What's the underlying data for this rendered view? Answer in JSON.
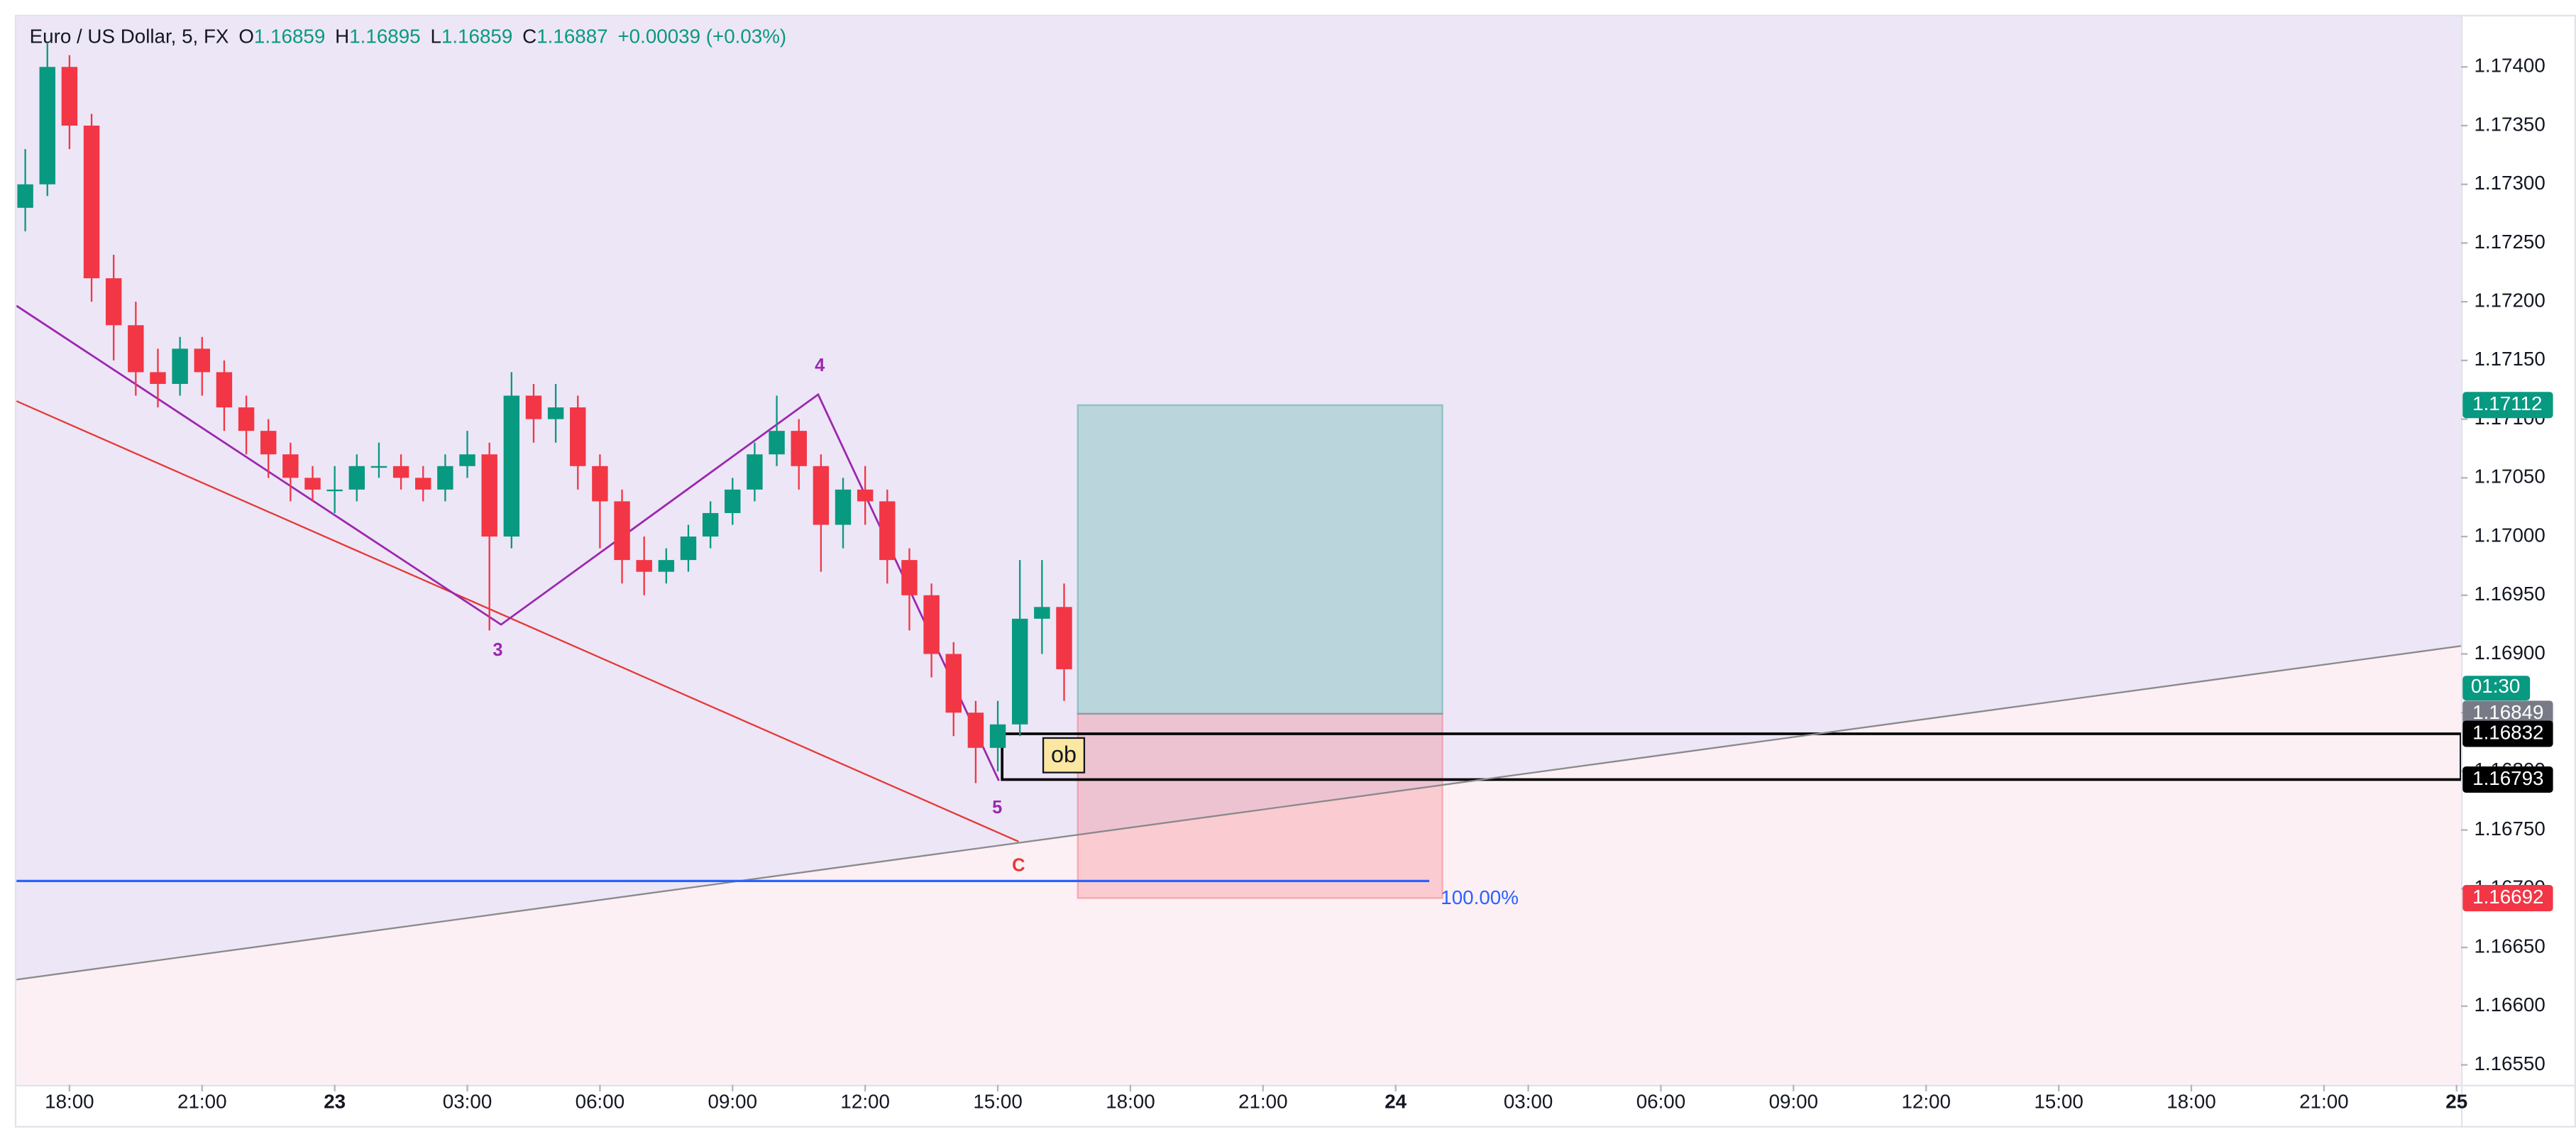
{
  "chart_data": {
    "type": "candlestick",
    "title": "Euro / US Dollar, 5, FX",
    "ohlc_labels": [
      "O",
      "H",
      "L",
      "C"
    ],
    "ohlc_values": [
      1.16859,
      1.16895,
      1.16859,
      1.16887
    ],
    "change": "+0.00039 (+0.03%)",
    "up_color": "#089981",
    "down_color": "#f23645",
    "x": [
      -7,
      -6.5,
      -6,
      -5.5,
      -5,
      -4.5,
      -4,
      -3.5,
      -3,
      -2.5,
      -2,
      -1.5,
      -1,
      -0.5,
      0,
      0.5,
      1,
      1.5,
      2,
      2.5,
      3,
      3.5,
      4,
      4.5,
      5,
      5.5,
      6,
      6.5,
      7,
      7.5,
      8,
      8.5,
      9,
      9.5,
      10,
      10.5,
      11,
      11.5,
      12,
      12.5,
      13,
      13.5,
      14,
      14.5,
      15,
      15.5,
      16,
      16.5
    ],
    "open": [
      1.1728,
      1.173,
      1.174,
      1.1735,
      1.1722,
      1.1718,
      1.1714,
      1.1713,
      1.1716,
      1.1714,
      1.1711,
      1.1709,
      1.1707,
      1.1705,
      1.1704,
      1.1704,
      1.1706,
      1.1706,
      1.1705,
      1.1704,
      1.1706,
      1.1707,
      1.17,
      1.1712,
      1.171,
      1.1711,
      1.1706,
      1.1703,
      1.1698,
      1.1697,
      1.1698,
      1.17,
      1.1702,
      1.1704,
      1.1707,
      1.1709,
      1.1706,
      1.1701,
      1.1704,
      1.1703,
      1.1698,
      1.1695,
      1.169,
      1.1685,
      1.1682,
      1.1684,
      1.1693,
      1.1694
    ],
    "high": [
      1.1733,
      1.1742,
      1.1741,
      1.1736,
      1.1724,
      1.172,
      1.1716,
      1.1717,
      1.1717,
      1.1715,
      1.1712,
      1.171,
      1.1708,
      1.1706,
      1.1706,
      1.1707,
      1.1708,
      1.1707,
      1.1706,
      1.1707,
      1.1709,
      1.1708,
      1.1714,
      1.1713,
      1.1713,
      1.1712,
      1.1707,
      1.1704,
      1.17,
      1.1699,
      1.1701,
      1.1703,
      1.1705,
      1.1708,
      1.1712,
      1.171,
      1.1707,
      1.1705,
      1.1706,
      1.1704,
      1.1699,
      1.1696,
      1.1691,
      1.1686,
      1.1686,
      1.1698,
      1.1698,
      1.1696
    ],
    "low": [
      1.1726,
      1.1729,
      1.1733,
      1.172,
      1.1715,
      1.1712,
      1.1711,
      1.1712,
      1.1712,
      1.1709,
      1.1707,
      1.1705,
      1.1703,
      1.1703,
      1.1702,
      1.1703,
      1.1705,
      1.1704,
      1.1703,
      1.1703,
      1.1705,
      1.1692,
      1.1699,
      1.1708,
      1.1708,
      1.1704,
      1.1699,
      1.1696,
      1.1695,
      1.1696,
      1.1697,
      1.1699,
      1.1701,
      1.1703,
      1.1706,
      1.1704,
      1.1697,
      1.1699,
      1.1701,
      1.1696,
      1.1692,
      1.1688,
      1.1683,
      1.1679,
      1.168,
      1.1683,
      1.169,
      1.1686
    ],
    "close": [
      1.173,
      1.174,
      1.1735,
      1.1722,
      1.1718,
      1.1714,
      1.1713,
      1.1716,
      1.1714,
      1.1711,
      1.1709,
      1.1707,
      1.1705,
      1.1704,
      1.1704,
      1.1706,
      1.1706,
      1.1705,
      1.1704,
      1.1706,
      1.1707,
      1.17,
      1.1712,
      1.171,
      1.1711,
      1.1706,
      1.1703,
      1.1698,
      1.1697,
      1.1698,
      1.17,
      1.1702,
      1.1704,
      1.1707,
      1.1709,
      1.1706,
      1.1701,
      1.1704,
      1.1703,
      1.1698,
      1.1695,
      1.169,
      1.1685,
      1.1682,
      1.1684,
      1.1693,
      1.1694,
      1.16887
    ],
    "xlim": [
      -7.2,
      48.1
    ],
    "xticks": [
      {
        "value": -6,
        "label": "18:00"
      },
      {
        "value": -3,
        "label": "21:00"
      },
      {
        "value": 0,
        "label": "23"
      },
      {
        "value": 3,
        "label": "03:00"
      },
      {
        "value": 6,
        "label": "06:00"
      },
      {
        "value": 9,
        "label": "09:00"
      },
      {
        "value": 12,
        "label": "12:00"
      },
      {
        "value": 15,
        "label": "15:00"
      },
      {
        "value": 18,
        "label": "18:00"
      },
      {
        "value": 21,
        "label": "21:00"
      },
      {
        "value": 24,
        "label": "24"
      },
      {
        "value": 27,
        "label": "03:00"
      },
      {
        "value": 30,
        "label": "06:00"
      },
      {
        "value": 33,
        "label": "09:00"
      },
      {
        "value": 36,
        "label": "12:00"
      },
      {
        "value": 39,
        "label": "15:00"
      },
      {
        "value": 42,
        "label": "18:00"
      },
      {
        "value": 45,
        "label": "21:00"
      },
      {
        "value": 48,
        "label": "25"
      }
    ],
    "ylim": [
      1.16533,
      1.17443
    ],
    "yticks": [
      {
        "value": 1.174,
        "label": "1.17400"
      },
      {
        "value": 1.1735,
        "label": "1.17350"
      },
      {
        "value": 1.173,
        "label": "1.17300"
      },
      {
        "value": 1.1725,
        "label": "1.17250"
      },
      {
        "value": 1.172,
        "label": "1.17200"
      },
      {
        "value": 1.1715,
        "label": "1.17150"
      },
      {
        "value": 1.171,
        "label": "1.17100"
      },
      {
        "value": 1.1705,
        "label": "1.17050"
      },
      {
        "value": 1.17,
        "label": "1.17000"
      },
      {
        "value": 1.1695,
        "label": "1.16950"
      },
      {
        "value": 1.169,
        "label": "1.16900"
      },
      {
        "value": 1.1685,
        "label": "1.16850"
      },
      {
        "value": 1.168,
        "label": "1.16800"
      },
      {
        "value": 1.1675,
        "label": "1.16750"
      },
      {
        "value": 1.167,
        "label": "1.16700"
      },
      {
        "value": 1.1665,
        "label": "1.16650"
      },
      {
        "value": 1.166,
        "label": "1.16600"
      },
      {
        "value": 1.1655,
        "label": "1.16550"
      }
    ],
    "levels": {
      "target": 1.17112,
      "entry": 1.16849,
      "ob_high": 1.16832,
      "ob_low": 1.16793,
      "stop": 1.16692
    },
    "countdown": "01:30",
    "annotations": [
      "3",
      "4",
      "5",
      "C",
      "ob",
      "100.00%"
    ]
  }
}
